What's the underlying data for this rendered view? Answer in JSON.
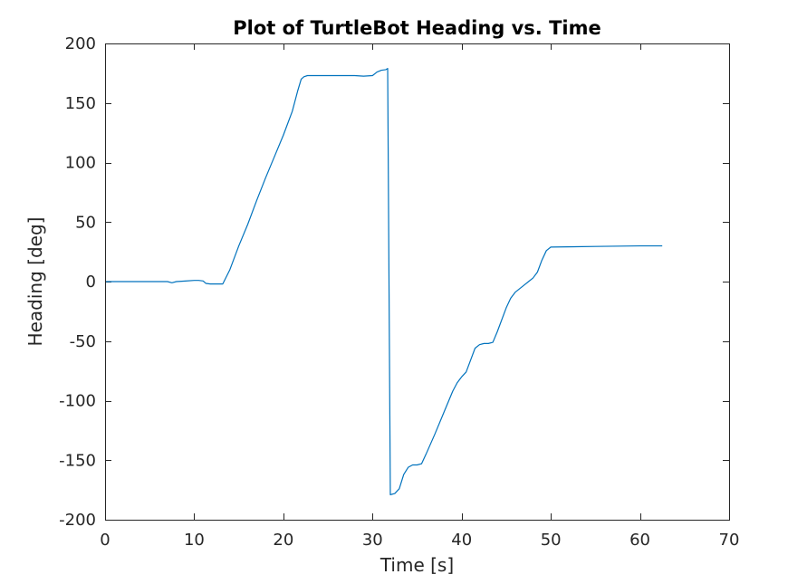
{
  "chart_data": {
    "type": "line",
    "title": "Plot of TurtleBot Heading vs. Time",
    "xlabel": "Time [s]",
    "ylabel": "Heading [deg]",
    "xlim": [
      0,
      70
    ],
    "ylim": [
      -200,
      200
    ],
    "x_ticks": [
      0,
      10,
      20,
      30,
      40,
      50,
      60,
      70
    ],
    "y_ticks": [
      -200,
      -150,
      -100,
      -50,
      0,
      50,
      100,
      150,
      200
    ],
    "x_tick_labels": [
      "0",
      "10",
      "20",
      "30",
      "40",
      "50",
      "60",
      "70"
    ],
    "y_tick_labels": [
      "-200",
      "-150",
      "-100",
      "-50",
      "0",
      "50",
      "100",
      "150",
      "200"
    ],
    "grid": false,
    "series_color": "#0072BD",
    "series": [
      {
        "x": [
          0,
          7,
          7.5,
          8,
          9,
          10,
          10.5,
          11,
          11.3,
          11.8,
          12.5,
          13.2,
          14,
          15,
          16,
          17,
          18,
          19,
          20,
          21,
          21.6,
          22,
          22.3,
          22.7,
          23.5,
          25,
          27,
          28,
          29,
          30,
          30.5,
          31,
          31.5,
          31.7,
          32,
          32.5,
          33,
          33.5,
          34,
          34.5,
          35,
          35.5,
          36,
          37,
          38,
          39,
          39.5,
          40,
          40.5,
          41,
          41.5,
          42,
          42.5,
          43,
          43.5,
          44,
          45,
          45.5,
          46,
          47,
          47.5,
          48,
          48.5,
          49,
          49.5,
          50,
          55,
          60,
          62.5
        ],
        "y": [
          0,
          0,
          -1,
          0,
          0.5,
          1,
          1,
          0.5,
          -1.5,
          -2,
          -2,
          -2,
          10,
          30,
          48,
          68,
          87,
          105,
          123,
          143,
          160,
          170,
          172,
          173,
          173,
          173,
          173,
          173,
          172.5,
          173,
          176,
          177.5,
          178,
          179,
          -179,
          -178,
          -174,
          -162,
          -156,
          -154,
          -154,
          -153,
          -145,
          -128,
          -110,
          -92,
          -85,
          -80,
          -76,
          -66,
          -56,
          -53,
          -52,
          -52,
          -51,
          -42,
          -22,
          -14,
          -9,
          -3,
          0,
          3,
          8,
          18,
          26,
          29,
          29.5,
          30,
          30
        ]
      }
    ]
  }
}
